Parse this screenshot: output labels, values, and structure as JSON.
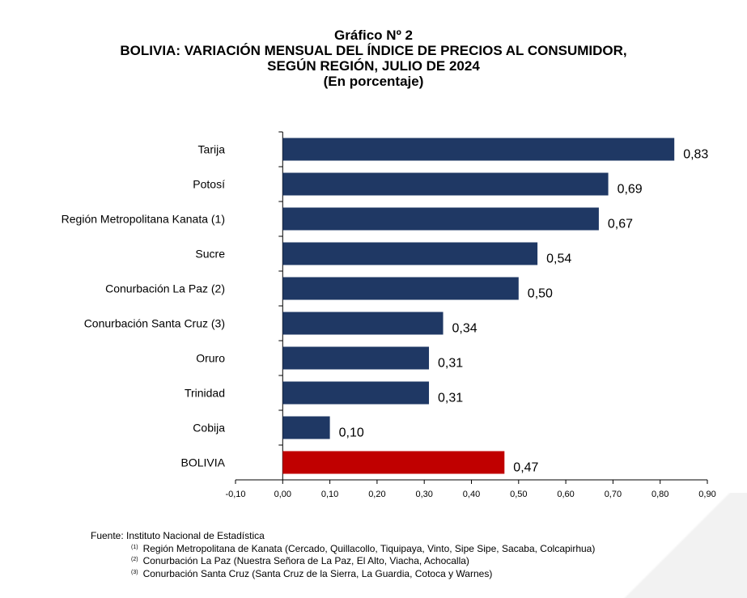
{
  "title": {
    "line1": "Gráfico Nº 2",
    "line2": "BOLIVIA: VARIACIÓN MENSUAL DEL ÍNDICE DE PRECIOS AL CONSUMIDOR,",
    "line3": "SEGÚN REGIÓN, JULIO DE 2024",
    "line4": "(En porcentaje)"
  },
  "chart_data": {
    "type": "bar",
    "orientation": "horizontal",
    "categories": [
      "Tarija",
      "Potosí",
      "Región Metropolitana Kanata (1)",
      "Sucre",
      "Conurbación La Paz (2)",
      "Conurbación Santa Cruz (3)",
      "Oruro",
      "Trinidad",
      "Cobija",
      "BOLIVIA"
    ],
    "values": [
      0.83,
      0.69,
      0.67,
      0.54,
      0.5,
      0.34,
      0.31,
      0.31,
      0.1,
      0.47
    ],
    "value_labels": [
      "0,83",
      "0,69",
      "0,67",
      "0,54",
      "0,50",
      "0,34",
      "0,31",
      "0,31",
      "0,10",
      "0,47"
    ],
    "xlim": [
      -0.1,
      0.9
    ],
    "xticks": [
      -0.1,
      0.0,
      0.1,
      0.2,
      0.3,
      0.4,
      0.5,
      0.6,
      0.7,
      0.8,
      0.9
    ],
    "xtick_labels": [
      "-0,10",
      "0,00",
      "0,10",
      "0,20",
      "0,30",
      "0,40",
      "0,50",
      "0,60",
      "0,70",
      "0,80",
      "0,90"
    ],
    "colors": {
      "default": "#1f3864",
      "highlight": "#c00000"
    },
    "highlight_category": "BOLIVIA",
    "grid": false,
    "legend": "none"
  },
  "footer": {
    "source": "Fuente: Instituto Nacional de Estadística",
    "notes": [
      {
        "mark": "(1)",
        "text": "Región Metropolitana de Kanata (Cercado, Quillacollo, Tiquipaya, Vinto, Sipe Sipe, Sacaba, Colcapirhua)"
      },
      {
        "mark": "(2)",
        "text": "Conurbación La Paz (Nuestra Señora de La Paz, El Alto, Viacha, Achocalla)"
      },
      {
        "mark": "(3)",
        "text": "Conurbación Santa Cruz (Santa Cruz de la Sierra, La Guardia, Cotoca y Warnes)"
      }
    ]
  }
}
